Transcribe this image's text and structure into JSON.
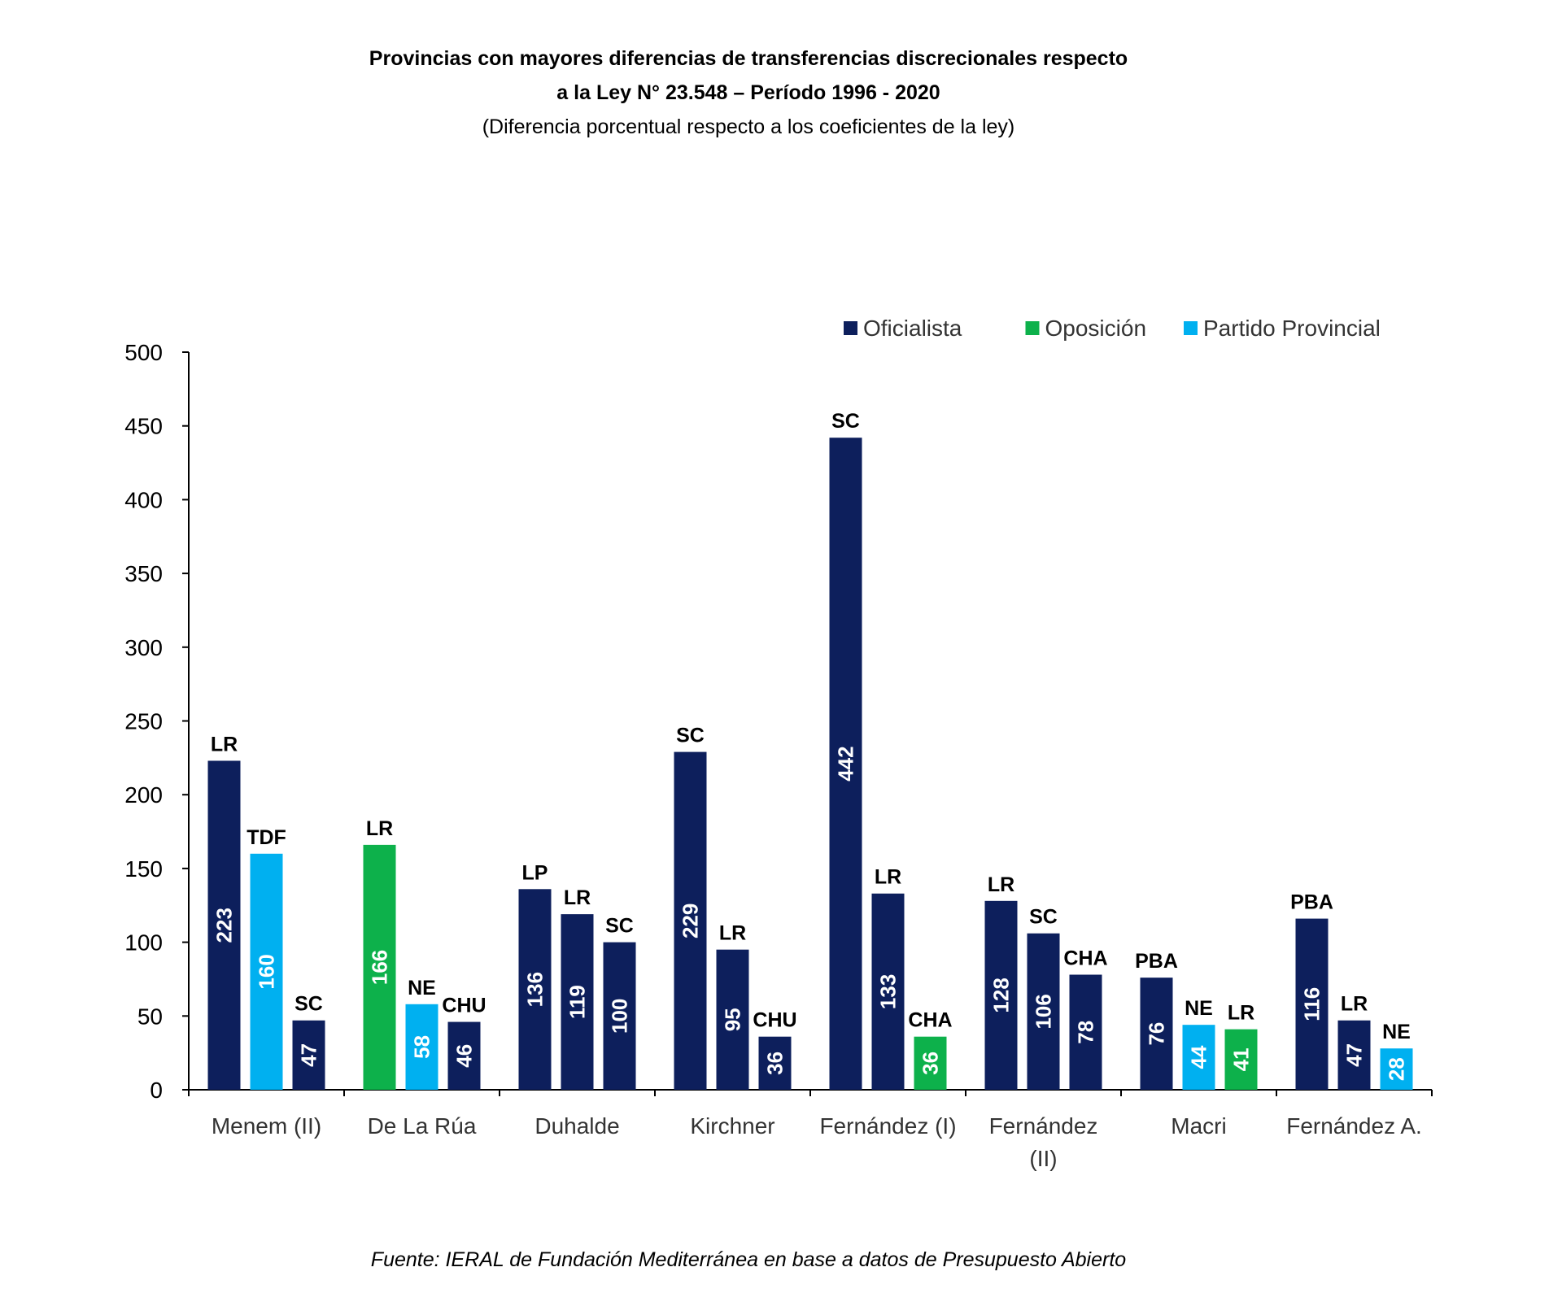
{
  "chart_data": {
    "type": "bar",
    "title_line1": "Provincias con mayores diferencias de transferencias discrecionales respecto",
    "title_line2": "a la Ley N° 23.548 – Período 1996 - 2020",
    "subtitle": "(Diferencia porcentual respecto a los coeficientes de la ley)",
    "source": "Fuente: IERAL de Fundación Mediterránea en base a datos de Presupuesto Abierto",
    "ylim": [
      0,
      500
    ],
    "yticks": [
      0,
      50,
      100,
      150,
      200,
      250,
      300,
      350,
      400,
      450,
      500
    ],
    "legend_position": "top-right",
    "legend": [
      {
        "key": "oficialista",
        "label": "Oficialista",
        "color": "#0d1f5c"
      },
      {
        "key": "oposicion",
        "label": "Oposición",
        "color": "#0db14b"
      },
      {
        "key": "provincial",
        "label": "Partido Provincial",
        "color": "#00b0f0"
      }
    ],
    "groups": [
      {
        "label": [
          "Menem (II)"
        ],
        "bars": [
          {
            "province": "LR",
            "value": 223,
            "party": "oficialista"
          },
          {
            "province": "TDF",
            "value": 160,
            "party": "provincial"
          },
          {
            "province": "SC",
            "value": 47,
            "party": "oficialista"
          }
        ]
      },
      {
        "label": [
          "De La Rúa"
        ],
        "bars": [
          {
            "province": "LR",
            "value": 166,
            "party": "oposicion"
          },
          {
            "province": "NE",
            "value": 58,
            "party": "provincial"
          },
          {
            "province": "CHU",
            "value": 46,
            "party": "oficialista"
          }
        ]
      },
      {
        "label": [
          "Duhalde"
        ],
        "bars": [
          {
            "province": "LP",
            "value": 136,
            "party": "oficialista"
          },
          {
            "province": "LR",
            "value": 119,
            "party": "oficialista"
          },
          {
            "province": "SC",
            "value": 100,
            "party": "oficialista"
          }
        ]
      },
      {
        "label": [
          "Kirchner"
        ],
        "bars": [
          {
            "province": "SC",
            "value": 229,
            "party": "oficialista"
          },
          {
            "province": "LR",
            "value": 95,
            "party": "oficialista"
          },
          {
            "province": "CHU",
            "value": 36,
            "party": "oficialista"
          }
        ]
      },
      {
        "label": [
          "Fernández (I)"
        ],
        "bars": [
          {
            "province": "SC",
            "value": 442,
            "party": "oficialista"
          },
          {
            "province": "LR",
            "value": 133,
            "party": "oficialista"
          },
          {
            "province": "CHA",
            "value": 36,
            "party": "oposicion"
          }
        ]
      },
      {
        "label": [
          "Fernández",
          "(II)"
        ],
        "bars": [
          {
            "province": "LR",
            "value": 128,
            "party": "oficialista"
          },
          {
            "province": "SC",
            "value": 106,
            "party": "oficialista"
          },
          {
            "province": "CHA",
            "value": 78,
            "party": "oficialista"
          }
        ]
      },
      {
        "label": [
          "Macri"
        ],
        "bars": [
          {
            "province": "PBA",
            "value": 76,
            "party": "oficialista"
          },
          {
            "province": "NE",
            "value": 44,
            "party": "provincial"
          },
          {
            "province": "LR",
            "value": 41,
            "party": "oposicion"
          }
        ]
      },
      {
        "label": [
          "Fernández A."
        ],
        "bars": [
          {
            "province": "PBA",
            "value": 116,
            "party": "oficialista"
          },
          {
            "province": "LR",
            "value": 47,
            "party": "oficialista"
          },
          {
            "province": "NE",
            "value": 28,
            "party": "provincial"
          }
        ]
      }
    ]
  }
}
